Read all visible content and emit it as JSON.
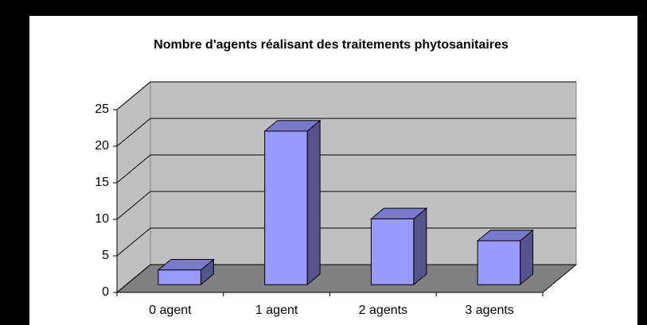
{
  "chart_data": {
    "type": "bar3d",
    "title": "Nombre d'agents réalisant des traitements phytosanitaires",
    "categories": [
      "0 agent",
      "1 agent",
      "2 agents",
      "3 agents"
    ],
    "values": [
      2,
      21,
      9,
      6
    ],
    "color": "#9999ff",
    "ylim": [
      0,
      25
    ],
    "yticks": [
      0,
      5,
      10,
      15,
      20,
      25
    ],
    "grid": true
  }
}
